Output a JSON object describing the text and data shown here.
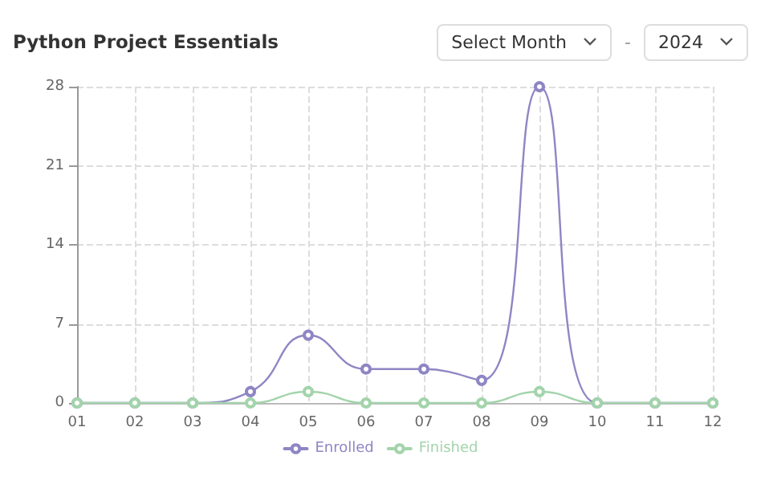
{
  "chart_data": {
    "type": "line",
    "title": "Python Project Essentials",
    "annotations": [
      "Select Month",
      "-",
      "2024"
    ],
    "categories": [
      "01",
      "02",
      "03",
      "04",
      "05",
      "06",
      "07",
      "08",
      "09",
      "10",
      "11",
      "12"
    ],
    "series": [
      {
        "name": "Enrolled",
        "color": "#8e86c4",
        "values": [
          0,
          0,
          0,
          1,
          6,
          3,
          3,
          2,
          28,
          0,
          0,
          0
        ]
      },
      {
        "name": "Finished",
        "color": "#a3d4ab",
        "values": [
          0,
          0,
          0,
          0,
          1,
          0,
          0,
          0,
          1,
          0,
          0,
          0
        ]
      }
    ],
    "ylim": [
      0,
      28
    ],
    "yticks": [
      0,
      7,
      14,
      21,
      28
    ],
    "grid": true,
    "legend": "bottom",
    "marker": "circle",
    "line_style": "solid"
  }
}
